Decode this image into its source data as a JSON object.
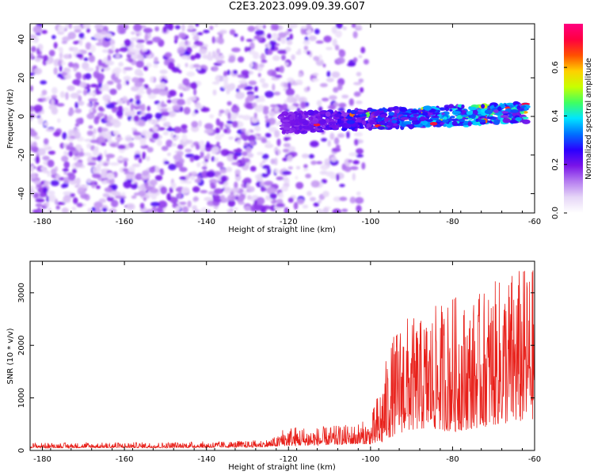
{
  "title": "C2E3.2023.099.09.39.G07",
  "chart_data": [
    {
      "type": "heatmap",
      "xlabel": "Height of straight line (km)",
      "ylabel": "Frequency (Hz)",
      "xlim": [
        -183,
        -60
      ],
      "ylim": [
        -50,
        48
      ],
      "xticks": [
        -180,
        -160,
        -140,
        -120,
        -100,
        -80,
        -60
      ],
      "yticks": [
        -40,
        -20,
        0,
        20,
        40
      ],
      "colorbar": {
        "label": "Normalized spectral amplitude",
        "range": [
          0,
          0.78
        ],
        "ticks": [
          0.0,
          0.2,
          0.4,
          0.6
        ],
        "colormap": [
          "#ffffff",
          "#e6d6f7",
          "#b57cf0",
          "#7a14e8",
          "#2a00ff",
          "#0070ff",
          "#00e5ff",
          "#40ff60",
          "#c8ff00",
          "#ffd000",
          "#ff5000",
          "#ff0040",
          "#ff0080"
        ]
      },
      "description_regions": {
        "noise_region_x": [
          -183,
          -107
        ],
        "noise_amplitude": 0.1,
        "signal_band_x": [
          -122,
          -62
        ],
        "signal_band_freq": [
          -5,
          5
        ],
        "signal_peak_amplitude": 0.7
      }
    },
    {
      "type": "line",
      "xlabel": "Height of straight line (km)",
      "ylabel": "SNR (10 * v/v)",
      "xlim": [
        -183,
        -60
      ],
      "ylim": [
        0,
        3600
      ],
      "xticks": [
        -180,
        -160,
        -140,
        -120,
        -100,
        -80,
        -60
      ],
      "yticks": [
        0,
        1000,
        2000,
        3000
      ],
      "series": [
        {
          "color": "#e8201a",
          "envelope_x": [
            -183,
            -170,
            -150,
            -130,
            -125,
            -120,
            -112,
            -105,
            -100,
            -97,
            -95,
            -92,
            -88,
            -85,
            -80,
            -76,
            -72,
            -68,
            -65,
            -62,
            -60
          ],
          "envelope_min": [
            50,
            50,
            50,
            60,
            70,
            90,
            100,
            120,
            120,
            150,
            250,
            350,
            400,
            400,
            350,
            400,
            450,
            500,
            500,
            550,
            600
          ],
          "envelope_max": [
            200,
            200,
            220,
            250,
            300,
            480,
            450,
            500,
            600,
            1500,
            2100,
            2600,
            2500,
            2700,
            3000,
            2800,
            3100,
            3300,
            3500,
            3500,
            3500
          ]
        }
      ]
    }
  ]
}
